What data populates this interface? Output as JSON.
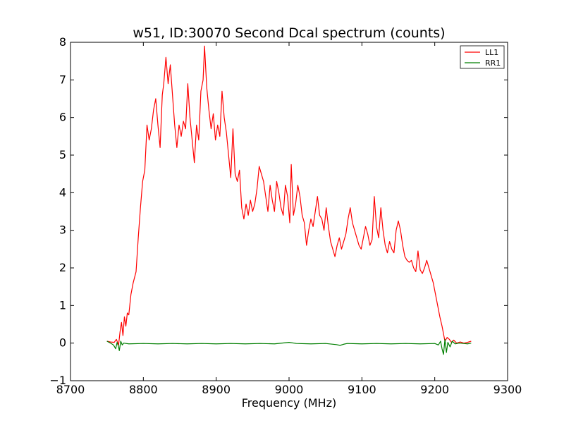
{
  "chart_data": {
    "type": "line",
    "title": "w51, ID:30070 Second Dcal spectrum (counts)",
    "xlabel": "Frequency (MHz)",
    "ylabel": "",
    "xlim": [
      8700,
      9300
    ],
    "ylim": [
      -1,
      8
    ],
    "x_ticks": [
      8700,
      8800,
      8900,
      9000,
      9100,
      9200,
      9300
    ],
    "y_ticks": [
      -1,
      0,
      1,
      2,
      3,
      4,
      5,
      6,
      7,
      8
    ],
    "x_tick_labels": [
      "8700",
      "8800",
      "8900",
      "9000",
      "9100",
      "9200",
      "9300"
    ],
    "y_tick_labels": [
      "−1",
      "0",
      "1",
      "2",
      "3",
      "4",
      "5",
      "6",
      "7",
      "8"
    ],
    "grid": false,
    "legend_position": "top-right",
    "series": [
      {
        "name": "LL1",
        "color": "#ff0000",
        "points": [
          [
            8750,
            0.05
          ],
          [
            8755,
            0.03
          ],
          [
            8760,
            0.02
          ],
          [
            8763,
            0.1
          ],
          [
            8766,
            -0.05
          ],
          [
            8768,
            0.3
          ],
          [
            8770,
            0.55
          ],
          [
            8772,
            0.2
          ],
          [
            8774,
            0.7
          ],
          [
            8776,
            0.45
          ],
          [
            8778,
            0.8
          ],
          [
            8780,
            0.75
          ],
          [
            8783,
            1.3
          ],
          [
            8786,
            1.6
          ],
          [
            8790,
            1.9
          ],
          [
            8793,
            2.8
          ],
          [
            8796,
            3.6
          ],
          [
            8799,
            4.3
          ],
          [
            8802,
            4.6
          ],
          [
            8805,
            5.8
          ],
          [
            8808,
            5.4
          ],
          [
            8811,
            5.7
          ],
          [
            8814,
            6.2
          ],
          [
            8817,
            6.5
          ],
          [
            8820,
            5.8
          ],
          [
            8823,
            5.2
          ],
          [
            8826,
            6.6
          ],
          [
            8828,
            6.9
          ],
          [
            8831,
            7.6
          ],
          [
            8834,
            6.9
          ],
          [
            8837,
            7.4
          ],
          [
            8840,
            6.6
          ],
          [
            8843,
            5.8
          ],
          [
            8846,
            5.2
          ],
          [
            8849,
            5.8
          ],
          [
            8852,
            5.5
          ],
          [
            8855,
            5.9
          ],
          [
            8858,
            5.7
          ],
          [
            8861,
            6.9
          ],
          [
            8864,
            6.0
          ],
          [
            8867,
            5.4
          ],
          [
            8870,
            4.8
          ],
          [
            8873,
            5.8
          ],
          [
            8876,
            5.4
          ],
          [
            8879,
            6.7
          ],
          [
            8882,
            7.0
          ],
          [
            8884,
            7.9
          ],
          [
            8887,
            6.8
          ],
          [
            8890,
            6.2
          ],
          [
            8893,
            5.7
          ],
          [
            8896,
            6.1
          ],
          [
            8899,
            5.4
          ],
          [
            8902,
            5.8
          ],
          [
            8905,
            5.5
          ],
          [
            8908,
            6.7
          ],
          [
            8911,
            6.0
          ],
          [
            8914,
            5.6
          ],
          [
            8917,
            5.0
          ],
          [
            8920,
            4.4
          ],
          [
            8923,
            5.7
          ],
          [
            8926,
            4.5
          ],
          [
            8929,
            4.3
          ],
          [
            8932,
            4.6
          ],
          [
            8935,
            3.6
          ],
          [
            8938,
            3.3
          ],
          [
            8941,
            3.7
          ],
          [
            8944,
            3.4
          ],
          [
            8947,
            3.8
          ],
          [
            8950,
            3.5
          ],
          [
            8953,
            3.7
          ],
          [
            8956,
            4.1
          ],
          [
            8959,
            4.7
          ],
          [
            8962,
            4.5
          ],
          [
            8965,
            4.3
          ],
          [
            8968,
            3.9
          ],
          [
            8971,
            3.5
          ],
          [
            8974,
            4.2
          ],
          [
            8977,
            3.8
          ],
          [
            8980,
            3.5
          ],
          [
            8983,
            4.3
          ],
          [
            8986,
            4.0
          ],
          [
            8989,
            3.6
          ],
          [
            8992,
            3.4
          ],
          [
            8995,
            4.2
          ],
          [
            8998,
            3.9
          ],
          [
            9001,
            3.2
          ],
          [
            9003,
            4.75
          ],
          [
            9006,
            3.4
          ],
          [
            9009,
            3.7
          ],
          [
            9012,
            4.2
          ],
          [
            9015,
            3.9
          ],
          [
            9018,
            3.4
          ],
          [
            9021,
            3.2
          ],
          [
            9024,
            2.6
          ],
          [
            9027,
            3.0
          ],
          [
            9030,
            3.3
          ],
          [
            9033,
            3.1
          ],
          [
            9036,
            3.5
          ],
          [
            9039,
            3.9
          ],
          [
            9042,
            3.4
          ],
          [
            9045,
            3.3
          ],
          [
            9048,
            3.0
          ],
          [
            9051,
            3.6
          ],
          [
            9054,
            3.1
          ],
          [
            9057,
            2.7
          ],
          [
            9060,
            2.5
          ],
          [
            9063,
            2.3
          ],
          [
            9066,
            2.6
          ],
          [
            9069,
            2.8
          ],
          [
            9072,
            2.5
          ],
          [
            9075,
            2.7
          ],
          [
            9078,
            2.9
          ],
          [
            9081,
            3.3
          ],
          [
            9084,
            3.6
          ],
          [
            9087,
            3.2
          ],
          [
            9090,
            3.0
          ],
          [
            9093,
            2.8
          ],
          [
            9096,
            2.6
          ],
          [
            9099,
            2.5
          ],
          [
            9102,
            2.8
          ],
          [
            9105,
            3.1
          ],
          [
            9108,
            2.9
          ],
          [
            9111,
            2.6
          ],
          [
            9114,
            2.75
          ],
          [
            9117,
            3.9
          ],
          [
            9120,
            3.1
          ],
          [
            9123,
            2.8
          ],
          [
            9126,
            3.6
          ],
          [
            9129,
            3.0
          ],
          [
            9132,
            2.6
          ],
          [
            9135,
            2.4
          ],
          [
            9138,
            2.7
          ],
          [
            9141,
            2.5
          ],
          [
            9144,
            2.4
          ],
          [
            9147,
            3.0
          ],
          [
            9150,
            3.25
          ],
          [
            9153,
            3.0
          ],
          [
            9156,
            2.6
          ],
          [
            9159,
            2.3
          ],
          [
            9162,
            2.2
          ],
          [
            9165,
            2.15
          ],
          [
            9168,
            2.2
          ],
          [
            9171,
            2.0
          ],
          [
            9174,
            1.9
          ],
          [
            9177,
            2.45
          ],
          [
            9180,
            1.95
          ],
          [
            9183,
            1.85
          ],
          [
            9186,
            2.0
          ],
          [
            9189,
            2.2
          ],
          [
            9192,
            2.0
          ],
          [
            9195,
            1.8
          ],
          [
            9198,
            1.6
          ],
          [
            9201,
            1.3
          ],
          [
            9204,
            1.0
          ],
          [
            9207,
            0.7
          ],
          [
            9210,
            0.45
          ],
          [
            9212,
            0.25
          ],
          [
            9214,
            0.05
          ],
          [
            9217,
            0.15
          ],
          [
            9220,
            0.1
          ],
          [
            9223,
            0.02
          ],
          [
            9226,
            0.08
          ],
          [
            9230,
            0.0
          ],
          [
            9235,
            0.03
          ],
          [
            9240,
            0.0
          ],
          [
            9245,
            0.02
          ],
          [
            9250,
            0.05
          ]
        ]
      },
      {
        "name": "RR1",
        "color": "#007f00",
        "points": [
          [
            8750,
            0.05
          ],
          [
            8755,
            0.0
          ],
          [
            8759,
            -0.05
          ],
          [
            8762,
            -0.15
          ],
          [
            8764,
            0.02
          ],
          [
            8766,
            -0.1
          ],
          [
            8767,
            -0.2
          ],
          [
            8769,
            0.05
          ],
          [
            8771,
            -0.05
          ],
          [
            8773,
            0.0
          ],
          [
            8780,
            -0.02
          ],
          [
            8800,
            -0.01
          ],
          [
            8820,
            -0.02
          ],
          [
            8840,
            -0.01
          ],
          [
            8860,
            -0.02
          ],
          [
            8880,
            -0.01
          ],
          [
            8900,
            -0.02
          ],
          [
            8920,
            -0.01
          ],
          [
            8940,
            -0.02
          ],
          [
            8960,
            -0.01
          ],
          [
            8980,
            -0.02
          ],
          [
            9000,
            0.02
          ],
          [
            9010,
            -0.01
          ],
          [
            9030,
            -0.02
          ],
          [
            9050,
            -0.01
          ],
          [
            9065,
            -0.04
          ],
          [
            9070,
            -0.06
          ],
          [
            9075,
            -0.03
          ],
          [
            9080,
            -0.01
          ],
          [
            9100,
            -0.02
          ],
          [
            9120,
            -0.01
          ],
          [
            9140,
            -0.02
          ],
          [
            9160,
            -0.01
          ],
          [
            9180,
            -0.02
          ],
          [
            9200,
            -0.01
          ],
          [
            9205,
            -0.05
          ],
          [
            9208,
            0.05
          ],
          [
            9210,
            -0.15
          ],
          [
            9212,
            -0.3
          ],
          [
            9214,
            0.1
          ],
          [
            9216,
            -0.25
          ],
          [
            9218,
            0.02
          ],
          [
            9221,
            -0.1
          ],
          [
            9224,
            0.05
          ],
          [
            9228,
            -0.02
          ],
          [
            9233,
            0.0
          ],
          [
            9240,
            -0.01
          ],
          [
            9245,
            -0.02
          ],
          [
            9250,
            0.0
          ]
        ]
      }
    ]
  }
}
